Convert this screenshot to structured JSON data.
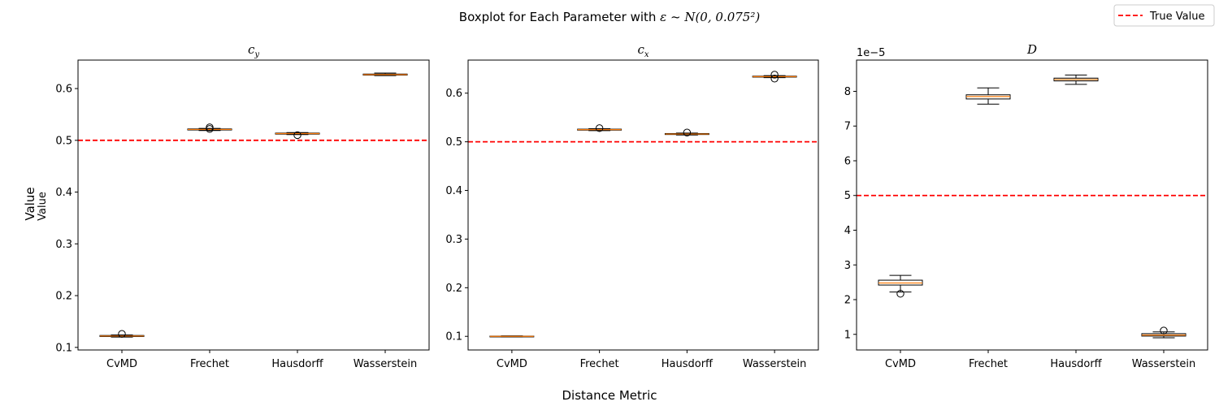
{
  "figure": {
    "suptitle_prefix": "Boxplot for Each Parameter with ",
    "suptitle_math": "ε ~ N(0, 0.075²)",
    "supxlabel": "Distance Metric",
    "supylabel": "Value"
  },
  "legend": {
    "label": "True Value",
    "color": "#ff0000",
    "placement": "top-right"
  },
  "colors": {
    "median": "#ff7f0e",
    "box": "#000000",
    "reference_line": "#ff0000"
  },
  "chart_data": [
    {
      "type": "box",
      "title": "c_y",
      "title_main": "c",
      "title_sub": "y",
      "ylabel": "Value",
      "categories": [
        "CvMD",
        "Frechet",
        "Hausdorff",
        "Wasserstein"
      ],
      "ylim": [
        0.095,
        0.655
      ],
      "yticks": [
        0.1,
        0.2,
        0.3,
        0.4,
        0.5,
        0.6
      ],
      "ytick_labels": [
        "0.1",
        "0.2",
        "0.3",
        "0.4",
        "0.5",
        "0.6"
      ],
      "true_value": 0.5,
      "boxes": [
        {
          "whislo": 0.12,
          "q1": 0.121,
          "med": 0.122,
          "q3": 0.123,
          "whishi": 0.124,
          "fliers": [
            0.126
          ]
        },
        {
          "whislo": 0.519,
          "q1": 0.52,
          "med": 0.521,
          "q3": 0.522,
          "whishi": 0.523,
          "fliers": [
            0.525,
            0.522
          ]
        },
        {
          "whislo": 0.511,
          "q1": 0.512,
          "med": 0.513,
          "q3": 0.514,
          "whishi": 0.515,
          "fliers": [
            0.51
          ]
        },
        {
          "whislo": 0.625,
          "q1": 0.626,
          "med": 0.627,
          "q3": 0.628,
          "whishi": 0.63,
          "fliers": []
        }
      ]
    },
    {
      "type": "box",
      "title": "c_x",
      "title_main": "c",
      "title_sub": "x",
      "categories": [
        "CvMD",
        "Frechet",
        "Hausdorff",
        "Wasserstein"
      ],
      "ylim": [
        0.072,
        0.668
      ],
      "yticks": [
        0.1,
        0.2,
        0.3,
        0.4,
        0.5,
        0.6
      ],
      "ytick_labels": [
        "0.1",
        "0.2",
        "0.3",
        "0.4",
        "0.5",
        "0.6"
      ],
      "true_value": 0.5,
      "boxes": [
        {
          "whislo": 0.099,
          "q1": 0.0995,
          "med": 0.1,
          "q3": 0.1005,
          "whishi": 0.101,
          "fliers": []
        },
        {
          "whislo": 0.523,
          "q1": 0.524,
          "med": 0.525,
          "q3": 0.526,
          "whishi": 0.527,
          "fliers": [
            0.528
          ]
        },
        {
          "whislo": 0.514,
          "q1": 0.515,
          "med": 0.516,
          "q3": 0.517,
          "whishi": 0.518,
          "fliers": [
            0.519
          ]
        },
        {
          "whislo": 0.632,
          "q1": 0.633,
          "med": 0.634,
          "q3": 0.635,
          "whishi": 0.636,
          "fliers": [
            0.63,
            0.638
          ]
        }
      ]
    },
    {
      "type": "box",
      "title": "D",
      "title_main": "D",
      "title_sub": "",
      "categories": [
        "CvMD",
        "Frechet",
        "Hausdorff",
        "Wasserstein"
      ],
      "ylim": [
        0.55,
        8.9
      ],
      "yticks": [
        1,
        2,
        3,
        4,
        5,
        6,
        7,
        8
      ],
      "ytick_labels": [
        "1",
        "2",
        "3",
        "4",
        "5",
        "6",
        "7",
        "8"
      ],
      "y_multiplier": "1e−5",
      "true_value": 5.0,
      "boxes": [
        {
          "whislo": 2.22,
          "q1": 2.42,
          "med": 2.48,
          "q3": 2.56,
          "whishi": 2.7,
          "fliers": [
            2.17
          ]
        },
        {
          "whislo": 7.63,
          "q1": 7.78,
          "med": 7.85,
          "q3": 7.9,
          "whishi": 8.1,
          "fliers": []
        },
        {
          "whislo": 8.2,
          "q1": 8.3,
          "med": 8.34,
          "q3": 8.38,
          "whishi": 8.47,
          "fliers": []
        },
        {
          "whislo": 0.9,
          "q1": 0.95,
          "med": 0.98,
          "q3": 1.02,
          "whishi": 1.07,
          "fliers": [
            1.11
          ]
        }
      ]
    }
  ]
}
